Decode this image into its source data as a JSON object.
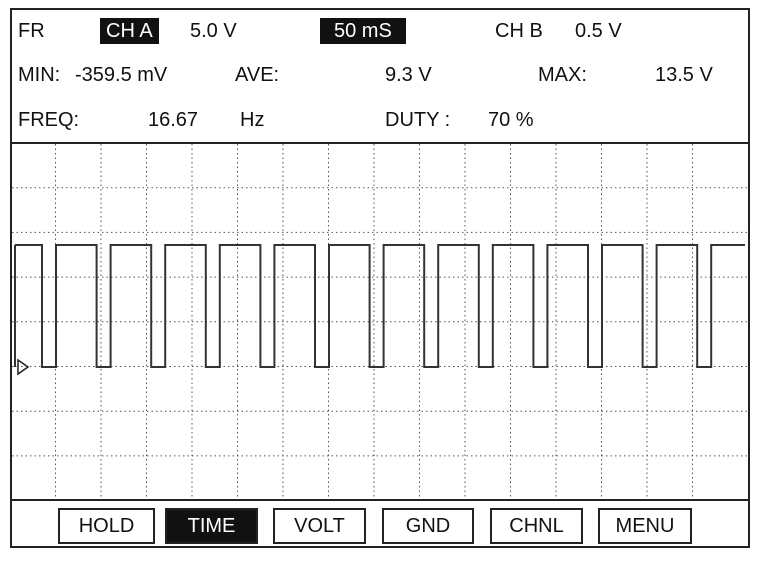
{
  "channel_bar": {
    "fr": "FR",
    "ch_a": "CH A",
    "ch_a_scale": "5.0 V",
    "timebase": "50 mS",
    "ch_b": "CH B",
    "ch_b_scale": "0.5 V"
  },
  "measurements": {
    "min_label": "MIN:",
    "min_value": "-359.5 mV",
    "ave_label": "AVE:",
    "ave_value": "9.3 V",
    "max_label": "MAX:",
    "max_value": "13.5 V",
    "freq_label": "FREQ:",
    "freq_value": "16.67",
    "freq_unit": "Hz",
    "duty_label": "DUTY :",
    "duty_value": "70 %"
  },
  "buttons": [
    "HOLD",
    "TIME",
    "VOLT",
    "GND",
    "CHNL",
    "MENU"
  ]
}
